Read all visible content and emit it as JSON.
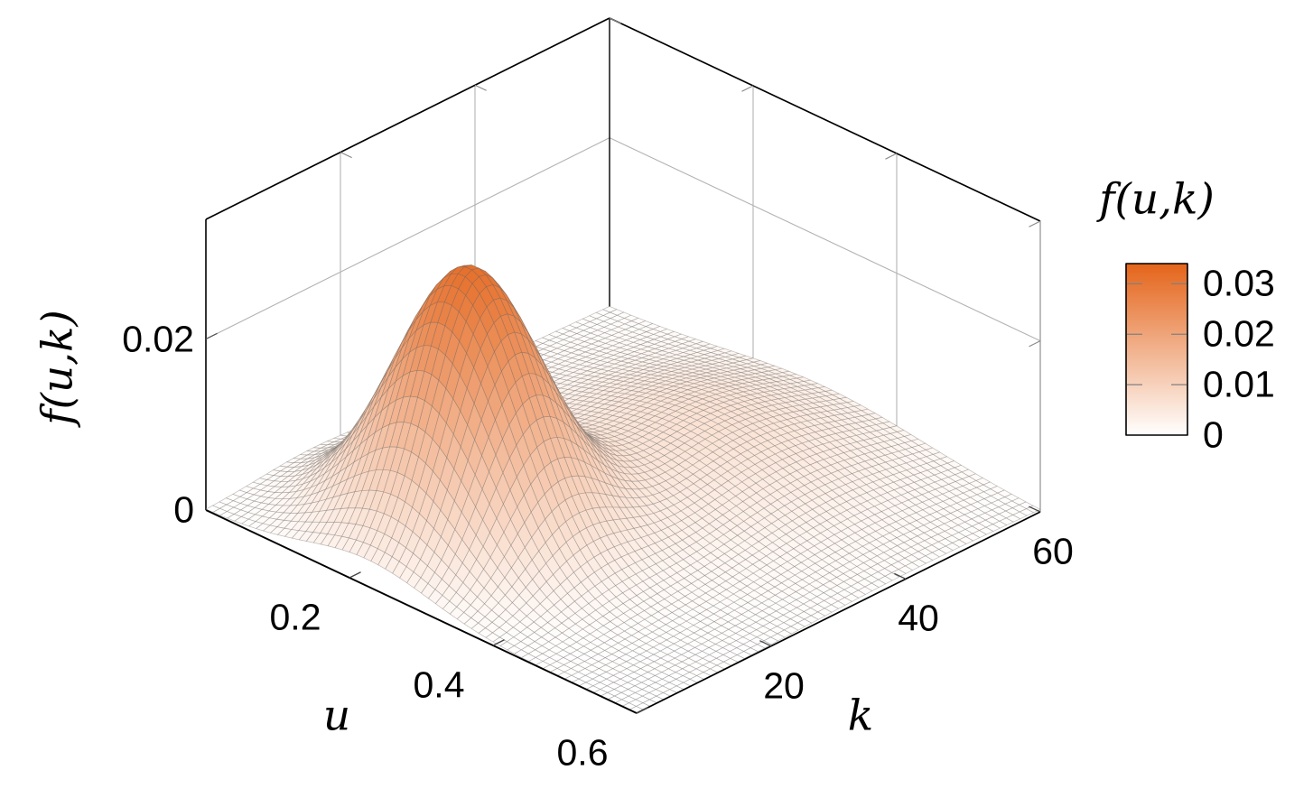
{
  "figure": {
    "background": "#ffffff",
    "frame_color": "#000000",
    "grid_color": "#b3b3b3",
    "right_edge_color": "#999999",
    "mesh_line_color": "rgba(105,100,95,0.42)",
    "z_axis": {
      "label": "f(u,k)",
      "ticks": [
        {
          "value": 0,
          "label": "0"
        },
        {
          "value": 0.02,
          "label": "0.02"
        }
      ]
    },
    "u_axis": {
      "label": "u",
      "ticks": [
        {
          "value": 0.2,
          "label": "0.2"
        },
        {
          "value": 0.4,
          "label": "0.4"
        },
        {
          "value": 0.6,
          "label": "0.6"
        }
      ]
    },
    "k_axis": {
      "label": "k",
      "ticks": [
        {
          "value": 20,
          "label": "20"
        },
        {
          "value": 40,
          "label": "40"
        },
        {
          "value": 60,
          "label": "60"
        }
      ]
    },
    "colorbar": {
      "title": "f(u,k)",
      "min": 0,
      "max": 0.034,
      "color_low": "#ffffff",
      "color_high": "#e4641a",
      "ticks": [
        {
          "value": 0,
          "label": "0"
        },
        {
          "value": 0.01,
          "label": "0.01"
        },
        {
          "value": 0.02,
          "label": "0.02"
        },
        {
          "value": 0.03,
          "label": "0.03"
        }
      ]
    }
  },
  "chart_data": {
    "type": "surface",
    "title": "",
    "xlabel": "u",
    "ylabel": "k",
    "zlabel": "f(u,k)",
    "x_range": [
      0,
      0.6
    ],
    "y_range": [
      0,
      60
    ],
    "z_range": [
      0,
      0.034
    ],
    "x_ticks": [
      0.2,
      0.4,
      0.6
    ],
    "y_ticks": [
      20,
      40,
      60
    ],
    "z_ticks": [
      0,
      0.02
    ],
    "grid_on_walls": {
      "wall_grid_u": [
        0.2,
        0.4
      ],
      "wall_grid_k": [
        20,
        40
      ],
      "wall_grid_z": [
        0.02
      ]
    },
    "grid_size": 60,
    "peak_value": 0.031,
    "peak_location": {
      "u": 0.225,
      "k": 15
    },
    "secondary_bump": {
      "u": 0.3,
      "k": 42,
      "value": 0.0063
    },
    "components": [
      {
        "type": "gaussian",
        "amplitude": 0.0305,
        "u_center": 0.225,
        "u_sigma": 0.085,
        "k_center": 15,
        "k_sigma": 7
      },
      {
        "type": "gaussian",
        "amplitude": 0.0063,
        "u_center": 0.3,
        "u_sigma": 0.14,
        "k_center": 42,
        "k_sigma": 14
      }
    ],
    "palette": {
      "low": "#ffffff",
      "high": "#e4641a"
    },
    "legend_position": "right colorbar"
  }
}
